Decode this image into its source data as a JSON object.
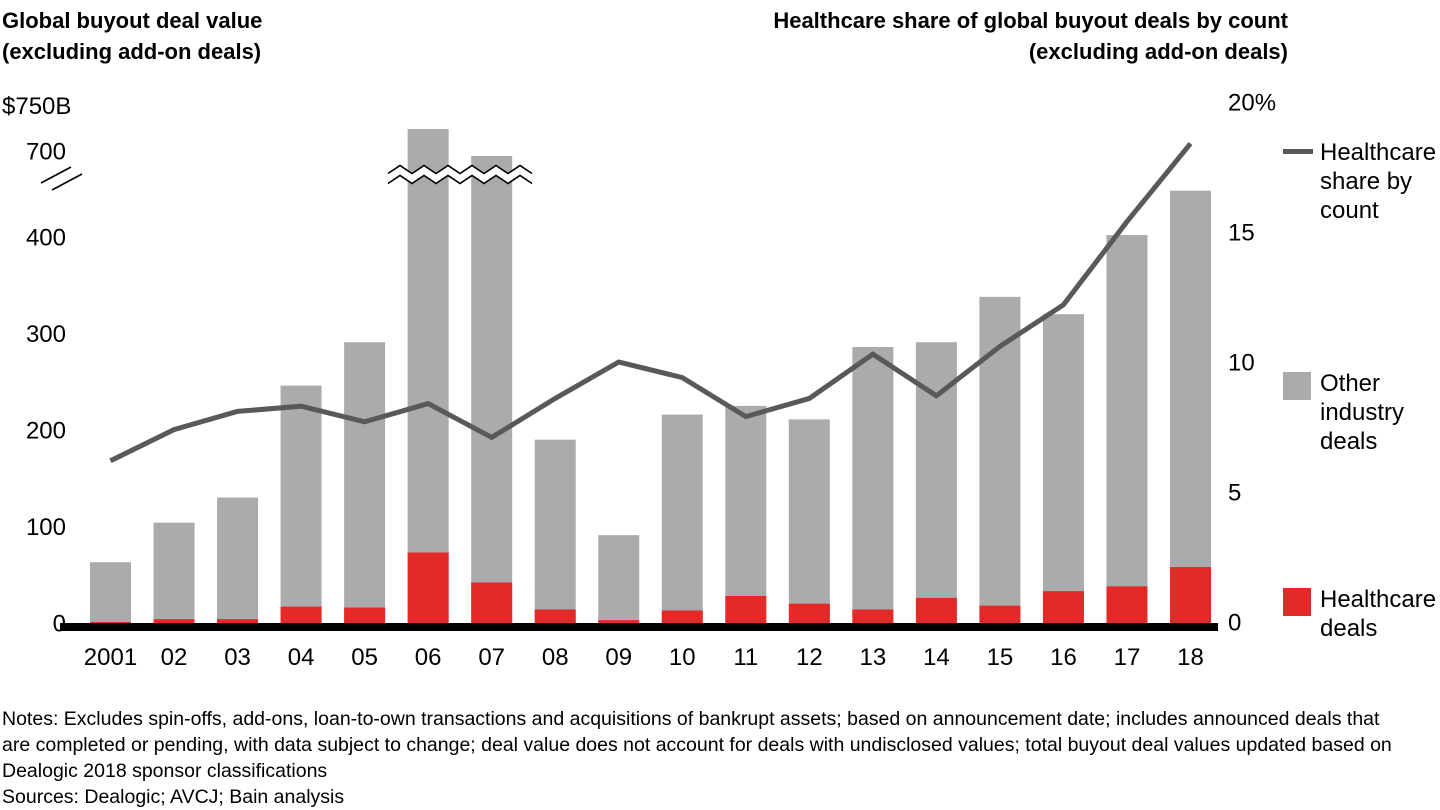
{
  "titles": {
    "left": "Global buyout deal value\n(excluding add-on deals)",
    "right": "Healthcare share of global buyout deals by count\n(excluding add-on deals)"
  },
  "left_axis": {
    "unit_label": "$750B",
    "tick_labels": [
      "700",
      "400",
      "300",
      "200",
      "100",
      "0"
    ],
    "tick_values": [
      700,
      400,
      300,
      200,
      100,
      0
    ],
    "axis_break_between": [
      400,
      700
    ]
  },
  "right_axis": {
    "tick_labels": [
      "20%",
      "15",
      "10",
      "5",
      "0"
    ],
    "tick_values": [
      20,
      15,
      10,
      5,
      0
    ]
  },
  "legend": [
    {
      "label": "Healthcare share by count",
      "type": "line",
      "color": "#58595b"
    },
    {
      "label": "Other industry deals",
      "type": "square",
      "color": "#a9abad"
    },
    {
      "label": "Healthcare deals",
      "type": "square",
      "color": "#e42a28"
    }
  ],
  "chart_data": {
    "type": "bar",
    "subtype": "stacked-bar-with-line",
    "categories": [
      "2001",
      "02",
      "03",
      "04",
      "05",
      "06",
      "07",
      "08",
      "09",
      "10",
      "11",
      "12",
      "13",
      "14",
      "15",
      "16",
      "17",
      "18"
    ],
    "series": [
      {
        "name": "Healthcare deals",
        "type": "bar",
        "stack": "deal-value",
        "axis": "left",
        "color": "#e42a28",
        "values": [
          1,
          4,
          4,
          17,
          16,
          73,
          42,
          14,
          3,
          13,
          28,
          20,
          14,
          26,
          18,
          33,
          38,
          58
        ]
      },
      {
        "name": "Other industry deals",
        "type": "bar",
        "stack": "deal-value",
        "axis": "left",
        "color": "#a9abad",
        "values": [
          62,
          100,
          126,
          229,
          275,
          647,
          648,
          176,
          88,
          203,
          197,
          191,
          272,
          265,
          320,
          287,
          364,
          390
        ]
      },
      {
        "name": "Healthcare share by count",
        "type": "line",
        "axis": "right",
        "color": "#58595b",
        "values": [
          6.2,
          7.4,
          8.1,
          8.3,
          7.7,
          8.4,
          7.1,
          8.6,
          10.0,
          9.4,
          7.9,
          8.6,
          10.3,
          8.7,
          10.6,
          12.2,
          15.4,
          18.4
        ]
      }
    ],
    "bar_totals": [
      63,
      104,
      130,
      246,
      291,
      720,
      690,
      190,
      91,
      216,
      225,
      211,
      286,
      291,
      338,
      320,
      402,
      448
    ],
    "title_left": "Global buyout deal value (excluding add-on deals)",
    "title_right": "Healthcare share of global buyout deals by count (excluding add-on deals)",
    "xlabel": "",
    "ylabel_left": "$750B",
    "ylabel_right": "20%",
    "ylim_left": [
      0,
      750
    ],
    "ylim_right": [
      0,
      20
    ],
    "left_axis_break": [
      400,
      700
    ],
    "grid": false,
    "legend_position": "right"
  },
  "colors": {
    "bar_gray": "#a9abad",
    "bar_red": "#e42a28",
    "line_gray": "#58595b",
    "axis_black": "#000000"
  },
  "footnotes": {
    "notes": "Notes: Excludes spin-offs, add-ons, loan-to-own transactions and acquisitions of bankrupt assets; based on announcement date; includes announced deals that\nare completed or pending, with data subject to change; deal value does not account for deals with undisclosed values; total buyout deal values updated based on\nDealogic 2018 sponsor classifications",
    "sources": "Sources: Dealogic; AVCJ; Bain analysis"
  }
}
